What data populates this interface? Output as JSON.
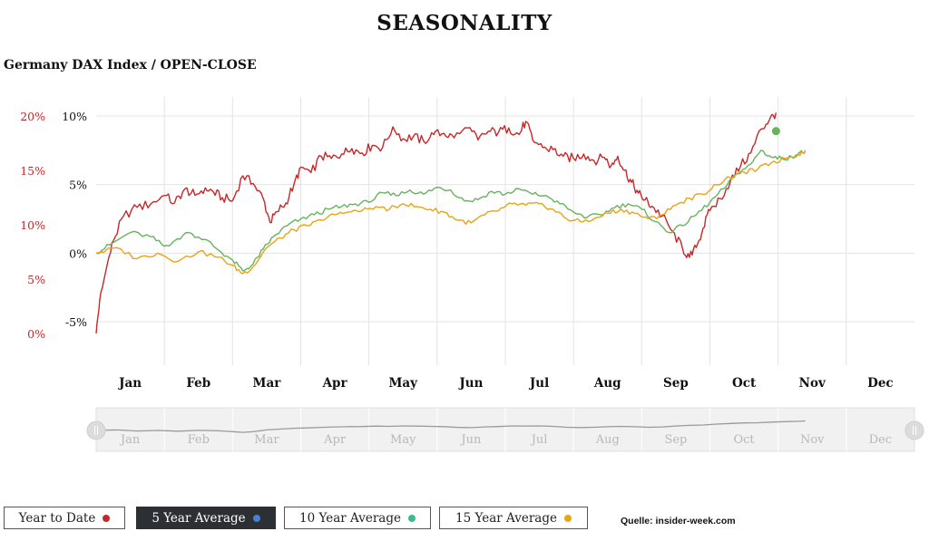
{
  "header": {
    "title": "SEASONALITY",
    "subtitle": "Germany DAX Index / OPEN-CLOSE"
  },
  "buttons": [
    {
      "label": "Year to Date",
      "dot_color": "#c62828",
      "active": false
    },
    {
      "label": "5 Year Average",
      "dot_color": "#4a7fd4",
      "active": true
    },
    {
      "label": "10 Year Average",
      "dot_color": "#3cba8a",
      "active": false
    },
    {
      "label": "15 Year Average",
      "dot_color": "#e8a317",
      "active": false
    }
  ],
  "source": "Quelle: insider-week.com",
  "chart_data": {
    "type": "line",
    "x_categories": [
      "Jan",
      "Feb",
      "Mar",
      "Apr",
      "May",
      "Jun",
      "Jul",
      "Aug",
      "Sep",
      "Oct",
      "Nov",
      "Dec"
    ],
    "left_axis": {
      "ticks": [
        "20%",
        "15%",
        "10%",
        "5%",
        "0%"
      ],
      "values": [
        20,
        15,
        10,
        5,
        0
      ],
      "color": "#c62828"
    },
    "right_axis": {
      "ticks": [
        "10%",
        "5%",
        "0%",
        "-5%"
      ],
      "values": [
        10,
        5,
        0,
        -5
      ],
      "color": "#111111"
    },
    "series": [
      {
        "name": "Year to Date",
        "axis": "left",
        "color": "#c62828",
        "points": [
          [
            0,
            0
          ],
          [
            0.05,
            3
          ],
          [
            0.15,
            6
          ],
          [
            0.25,
            8.5
          ],
          [
            0.4,
            10.8
          ],
          [
            0.6,
            11.6
          ],
          [
            0.8,
            11.9
          ],
          [
            1.0,
            12.7
          ],
          [
            1.15,
            12.0
          ],
          [
            1.3,
            13.3
          ],
          [
            1.45,
            12.7
          ],
          [
            1.6,
            13.4
          ],
          [
            1.72,
            13.0
          ],
          [
            1.85,
            12.5
          ],
          [
            2.0,
            12.2
          ],
          [
            2.15,
            14.5
          ],
          [
            2.3,
            13.8
          ],
          [
            2.45,
            12.4
          ],
          [
            2.55,
            10.2
          ],
          [
            2.65,
            11.2
          ],
          [
            2.78,
            12.0
          ],
          [
            2.9,
            13.7
          ],
          [
            3.0,
            15.3
          ],
          [
            3.15,
            14.8
          ],
          [
            3.3,
            16.3
          ],
          [
            3.45,
            16.1
          ],
          [
            3.6,
            16.5
          ],
          [
            3.75,
            17.0
          ],
          [
            3.9,
            16.6
          ],
          [
            4.05,
            17.3
          ],
          [
            4.2,
            17.1
          ],
          [
            4.35,
            19.0
          ],
          [
            4.5,
            17.9
          ],
          [
            4.65,
            18.1
          ],
          [
            4.8,
            17.7
          ],
          [
            4.95,
            18.3
          ],
          [
            5.1,
            18.4
          ],
          [
            5.25,
            18.0
          ],
          [
            5.45,
            18.9
          ],
          [
            5.6,
            17.8
          ],
          [
            5.75,
            18.6
          ],
          [
            5.9,
            18.5
          ],
          [
            6.05,
            18.9
          ],
          [
            6.2,
            18.3
          ],
          [
            6.3,
            19.5
          ],
          [
            6.4,
            17.8
          ],
          [
            6.55,
            17.1
          ],
          [
            6.7,
            16.9
          ],
          [
            6.85,
            16.3
          ],
          [
            7.0,
            16.1
          ],
          [
            7.15,
            16.5
          ],
          [
            7.3,
            15.9
          ],
          [
            7.45,
            16.2
          ],
          [
            7.55,
            15.4
          ],
          [
            7.65,
            16.3
          ],
          [
            7.75,
            15.0
          ],
          [
            7.85,
            13.9
          ],
          [
            7.95,
            12.9
          ],
          [
            8.05,
            12.3
          ],
          [
            8.15,
            11.7
          ],
          [
            8.3,
            10.8
          ],
          [
            8.45,
            9.4
          ],
          [
            8.6,
            7.8
          ],
          [
            8.7,
            7.0
          ],
          [
            8.8,
            7.9
          ],
          [
            8.9,
            9.7
          ],
          [
            9.0,
            11.3
          ],
          [
            9.15,
            12.4
          ],
          [
            9.3,
            14.0
          ],
          [
            9.45,
            15.4
          ],
          [
            9.6,
            16.6
          ],
          [
            9.75,
            18.8
          ],
          [
            9.87,
            19.6
          ],
          [
            9.97,
            20.3
          ]
        ]
      },
      {
        "name": "10 Year Average",
        "axis": "right",
        "color": "#66b35e",
        "points": [
          [
            0,
            0
          ],
          [
            0.2,
            0.6
          ],
          [
            0.5,
            1.5
          ],
          [
            0.8,
            1.2
          ],
          [
            1.0,
            0.5
          ],
          [
            1.15,
            0.9
          ],
          [
            1.35,
            1.5
          ],
          [
            1.6,
            1.0
          ],
          [
            1.8,
            0.2
          ],
          [
            2.0,
            -0.5
          ],
          [
            2.15,
            -1.3
          ],
          [
            2.3,
            -0.8
          ],
          [
            2.45,
            0.3
          ],
          [
            2.6,
            1.2
          ],
          [
            2.8,
            2.0
          ],
          [
            3.0,
            2.5
          ],
          [
            3.2,
            2.8
          ],
          [
            3.4,
            3.2
          ],
          [
            3.6,
            3.4
          ],
          [
            3.8,
            3.6
          ],
          [
            4.0,
            3.7
          ],
          [
            4.2,
            4.4
          ],
          [
            4.4,
            4.2
          ],
          [
            4.6,
            4.6
          ],
          [
            4.8,
            4.3
          ],
          [
            5.0,
            4.8
          ],
          [
            5.2,
            4.6
          ],
          [
            5.4,
            3.8
          ],
          [
            5.6,
            3.9
          ],
          [
            5.8,
            4.5
          ],
          [
            6.0,
            4.3
          ],
          [
            6.2,
            4.7
          ],
          [
            6.4,
            4.3
          ],
          [
            6.6,
            4.2
          ],
          [
            6.8,
            3.6
          ],
          [
            7.0,
            3.0
          ],
          [
            7.2,
            2.6
          ],
          [
            7.4,
            2.8
          ],
          [
            7.6,
            3.3
          ],
          [
            7.8,
            3.6
          ],
          [
            8.0,
            3.2
          ],
          [
            8.2,
            2.3
          ],
          [
            8.4,
            1.5
          ],
          [
            8.6,
            2.0
          ],
          [
            8.8,
            2.8
          ],
          [
            9.0,
            3.7
          ],
          [
            9.2,
            4.7
          ],
          [
            9.4,
            5.8
          ],
          [
            9.6,
            6.5
          ],
          [
            9.75,
            7.5
          ],
          [
            9.9,
            7.0
          ],
          [
            10.05,
            6.9
          ],
          [
            10.2,
            7.0
          ],
          [
            10.3,
            7.3
          ],
          [
            10.4,
            7.4
          ]
        ]
      },
      {
        "name": "15 Year Average",
        "axis": "right",
        "color": "#e8a317",
        "points": [
          [
            0,
            0
          ],
          [
            0.3,
            0.4
          ],
          [
            0.6,
            -0.4
          ],
          [
            0.9,
            0
          ],
          [
            1.2,
            -0.6
          ],
          [
            1.5,
            0.1
          ],
          [
            1.8,
            -0.3
          ],
          [
            2.0,
            -0.9
          ],
          [
            2.15,
            -1.5
          ],
          [
            2.3,
            -1.0
          ],
          [
            2.5,
            0.4
          ],
          [
            2.7,
            1.1
          ],
          [
            2.9,
            1.7
          ],
          [
            3.1,
            2.0
          ],
          [
            3.3,
            2.4
          ],
          [
            3.5,
            2.8
          ],
          [
            3.7,
            3.0
          ],
          [
            3.9,
            3.1
          ],
          [
            4.1,
            3.4
          ],
          [
            4.3,
            3.2
          ],
          [
            4.5,
            3.6
          ],
          [
            4.7,
            3.4
          ],
          [
            4.9,
            3.2
          ],
          [
            5.1,
            3.0
          ],
          [
            5.3,
            2.4
          ],
          [
            5.5,
            2.2
          ],
          [
            5.7,
            2.8
          ],
          [
            5.9,
            3.1
          ],
          [
            6.1,
            3.6
          ],
          [
            6.3,
            3.5
          ],
          [
            6.5,
            3.6
          ],
          [
            6.7,
            3.2
          ],
          [
            6.9,
            2.5
          ],
          [
            7.1,
            2.3
          ],
          [
            7.3,
            2.5
          ],
          [
            7.5,
            2.9
          ],
          [
            7.7,
            3.2
          ],
          [
            7.9,
            2.9
          ],
          [
            8.1,
            2.5
          ],
          [
            8.3,
            2.8
          ],
          [
            8.5,
            3.5
          ],
          [
            8.7,
            4.0
          ],
          [
            8.9,
            4.3
          ],
          [
            9.1,
            5.0
          ],
          [
            9.3,
            5.5
          ],
          [
            9.5,
            5.9
          ],
          [
            9.7,
            6.1
          ],
          [
            9.9,
            6.6
          ],
          [
            10.1,
            6.9
          ],
          [
            10.3,
            7.2
          ],
          [
            10.4,
            7.5
          ]
        ]
      }
    ],
    "highlight_point": {
      "series": "10 Year Average",
      "x": 9.97,
      "y": 8.9,
      "color": "#66b35e"
    },
    "grid": true,
    "navigator": {
      "show": true,
      "labels": [
        "Jan",
        "Feb",
        "Mar",
        "Apr",
        "May",
        "Jun",
        "Jul",
        "Aug",
        "Sep",
        "Oct",
        "Nov",
        "Dec"
      ]
    }
  }
}
